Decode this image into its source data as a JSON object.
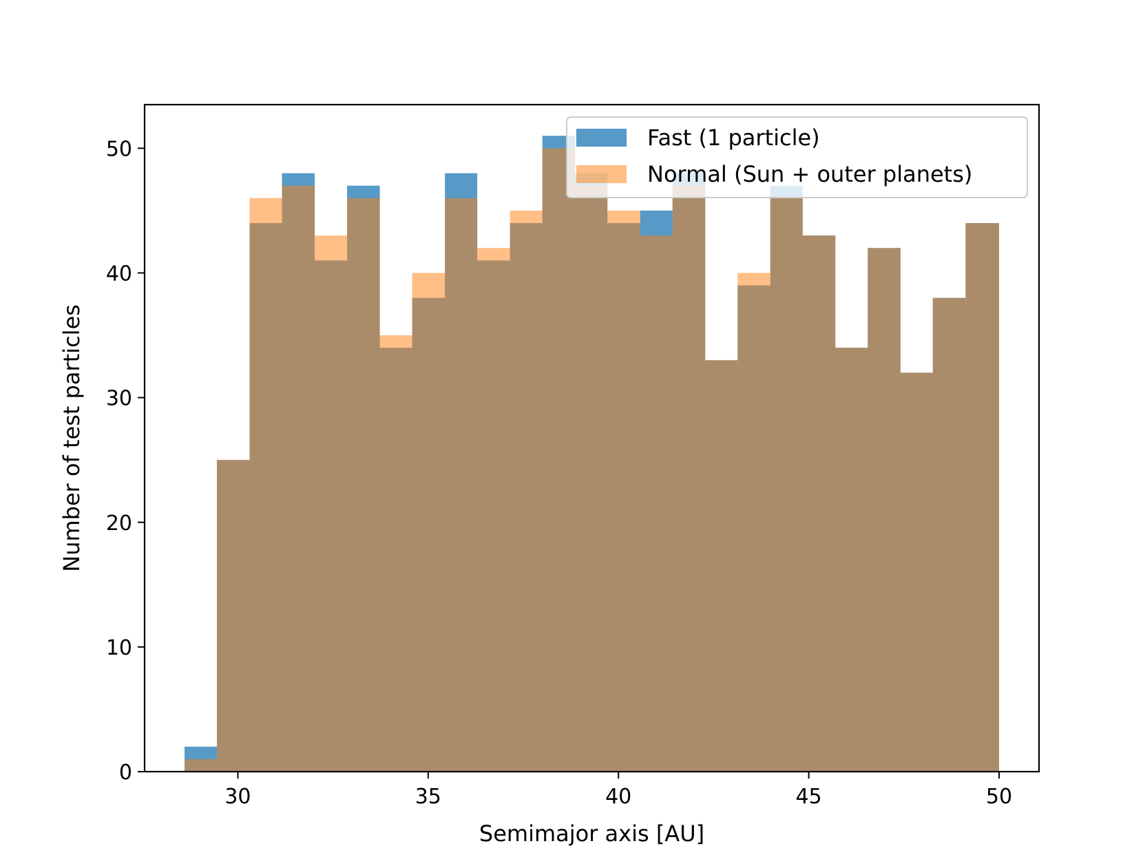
{
  "chart_data": {
    "type": "bar",
    "subtype": "overlaid-histogram",
    "title": "",
    "xlabel": "Semimajor axis [AU]",
    "ylabel": "Number of test particles",
    "xlim": [
      27.55,
      51.05
    ],
    "ylim": [
      0,
      53.5
    ],
    "xticks": [
      30,
      35,
      40,
      45,
      50
    ],
    "xtick_labels": [
      "30",
      "35",
      "40",
      "45",
      "50"
    ],
    "yticks": [
      0,
      10,
      20,
      30,
      40,
      50
    ],
    "ytick_labels": [
      "0",
      "10",
      "20",
      "30",
      "40",
      "50"
    ],
    "bin_edges": [
      28.6,
      29.45,
      30.31,
      31.16,
      32.02,
      32.87,
      33.73,
      34.58,
      35.44,
      36.29,
      37.15,
      38.0,
      38.86,
      39.71,
      40.57,
      41.42,
      42.28,
      43.13,
      43.99,
      44.84,
      45.7,
      46.55,
      47.41,
      48.26,
      49.12,
      50.0
    ],
    "series": [
      {
        "name": "Fast (1 particle)",
        "color": "#1f77b4",
        "opacity": 0.75,
        "values": [
          2,
          25,
          44,
          48,
          41,
          47,
          34,
          38,
          48,
          41,
          44,
          51,
          48,
          44,
          45,
          48,
          33,
          39,
          47,
          43,
          34,
          42,
          32,
          38,
          44
        ]
      },
      {
        "name": "Normal (Sun + outer planets)",
        "color": "#ff7f0e",
        "opacity": 0.5,
        "values": [
          1,
          25,
          46,
          47,
          43,
          46,
          35,
          40,
          46,
          42,
          45,
          50,
          47,
          45,
          43,
          47,
          33,
          40,
          46,
          43,
          34,
          42,
          32,
          38,
          44
        ]
      }
    ],
    "legend": {
      "placement": "top-right"
    },
    "grid": false
  }
}
